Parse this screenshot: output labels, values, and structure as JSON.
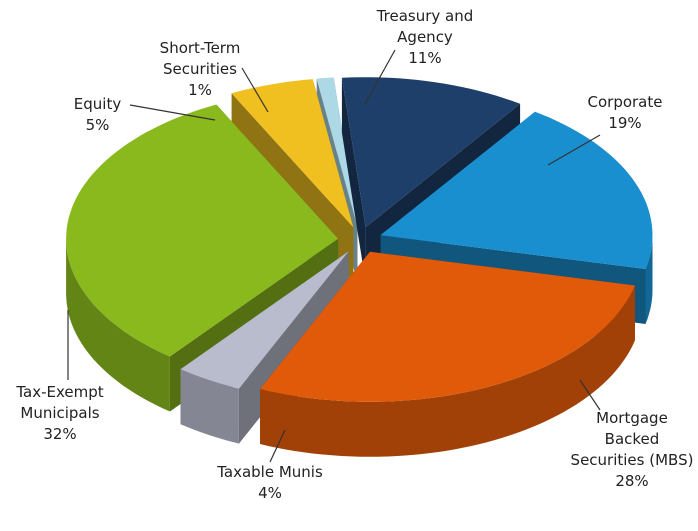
{
  "chart_data": {
    "type": "pie",
    "categories": [
      "Treasury and Agency",
      "Corporate",
      "Mortgage Backed Securities (MBS)",
      "Taxable Munis",
      "Tax-Exempt Municipals",
      "Equity",
      "Short-Term Securities"
    ],
    "values": [
      11,
      19,
      28,
      4,
      32,
      5,
      1
    ],
    "value_labels": [
      "11%",
      "19%",
      "28%",
      "4%",
      "32%",
      "5%",
      "1%"
    ],
    "colors": [
      "#1f3f6b",
      "#1a8fd0",
      "#e05a0a",
      "#b8bccc",
      "#8ab91e",
      "#f0c020",
      "#add8e6"
    ]
  }
}
